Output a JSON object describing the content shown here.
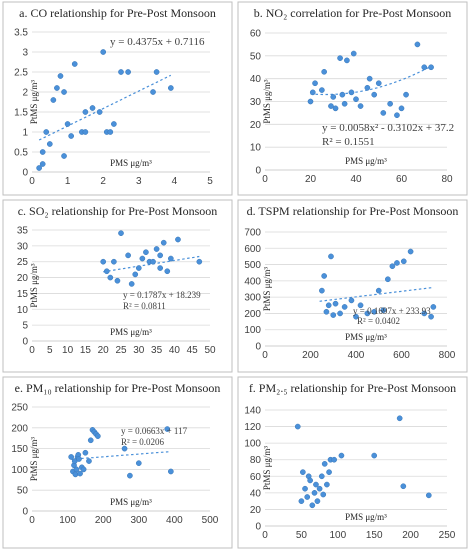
{
  "figure": {
    "accent": "#4a90d9",
    "grid": "#d9d9d9",
    "border": "#bfbfbf"
  },
  "chart_data": [
    {
      "type": "scatter",
      "title": "a.   CO relationship for Pre-Post Monsoon",
      "xlabel": "PMS μg/m³",
      "ylabel": "PtMS μg/m³",
      "xlim": [
        0,
        5
      ],
      "ylim": [
        0,
        3.5
      ],
      "xticks": [
        0,
        1,
        2,
        3,
        4,
        5
      ],
      "yticks": [
        0,
        0.5,
        1,
        1.5,
        2,
        2.5,
        3,
        3.5
      ],
      "grid": "horizontal",
      "x": [
        0.2,
        0.3,
        0.3,
        0.5,
        0.6,
        0.7,
        0.8,
        0.9,
        0.9,
        1.0,
        1.2,
        1.4,
        1.5,
        1.5,
        1.7,
        1.9,
        2.0,
        2.1,
        2.2,
        2.3,
        2.5,
        2.7,
        3.4,
        3.5,
        3.9,
        0.4,
        1.1
      ],
      "y": [
        0.1,
        0.2,
        0.5,
        0.7,
        1.8,
        2.1,
        2.4,
        0.4,
        2.0,
        1.2,
        2.7,
        1.0,
        1.5,
        1.0,
        1.6,
        1.5,
        3.0,
        1.0,
        1.0,
        1.2,
        2.5,
        2.5,
        2.0,
        2.5,
        2.1,
        1.0,
        0.9
      ],
      "trend": {
        "kind": "linear",
        "a": 0.4375,
        "b": 0.7116,
        "x0": 0.2,
        "x1": 3.9
      },
      "equations": [
        "y = 0.4375x + 0.7116"
      ]
    },
    {
      "type": "scatter",
      "title": "b. NO₂ correlation for Pre-Post Monsoon",
      "xlabel": "PMS μg/m³",
      "ylabel": "PtMS μg/m³",
      "xlim": [
        0,
        80
      ],
      "ylim": [
        0,
        60
      ],
      "xticks": [
        0,
        20,
        40,
        60,
        80
      ],
      "yticks": [
        0,
        10,
        20,
        30,
        40,
        50,
        60
      ],
      "grid": "horizontal",
      "x": [
        20,
        21,
        22,
        25,
        26,
        29,
        30,
        31,
        33,
        34,
        35,
        36,
        38,
        39,
        40,
        42,
        45,
        46,
        48,
        50,
        52,
        55,
        58,
        60,
        62,
        67,
        70,
        73
      ],
      "y": [
        30,
        34,
        38,
        35,
        43,
        28,
        32,
        27,
        49,
        33,
        29,
        48,
        34,
        51,
        31,
        28,
        36,
        40,
        33,
        38,
        25,
        29,
        24,
        27,
        33,
        55,
        45,
        45
      ],
      "trend": {
        "kind": "quadratic",
        "a": 0.0058,
        "b": -0.3102,
        "c": 37.2,
        "x0": 20,
        "x1": 73
      },
      "equations": [
        "y = 0.0058x² - 0.3102x + 37.2",
        "R² = 0.1551"
      ]
    },
    {
      "type": "scatter",
      "title": "c. SO₂ relationship for Pre-Post Monsoon",
      "xlabel": "PMS μg/m³",
      "ylabel": "PtMS μg/m³",
      "xlim": [
        0,
        50
      ],
      "ylim": [
        0,
        35
      ],
      "xticks": [
        0,
        5,
        10,
        15,
        20,
        25,
        30,
        35,
        40,
        45,
        50
      ],
      "yticks": [
        0,
        5,
        10,
        15,
        20,
        25,
        30,
        35
      ],
      "grid": "horizontal",
      "x": [
        20,
        21,
        22,
        23,
        24,
        25,
        27,
        28,
        29,
        31,
        32,
        33,
        34,
        35,
        36,
        37,
        38,
        39,
        41,
        47,
        30,
        36
      ],
      "y": [
        25,
        22,
        20,
        25,
        19,
        34,
        27,
        18,
        21,
        26,
        28,
        25,
        25,
        29,
        27,
        31,
        22,
        26,
        32,
        25,
        23,
        23
      ],
      "trend": {
        "kind": "linear",
        "a": 0.1787,
        "b": 18.239,
        "x0": 20,
        "x1": 47
      },
      "equations": [
        "y = 0.1787x + 18.239",
        "R² = 0.0811"
      ]
    },
    {
      "type": "scatter",
      "title": "d. TSPM relationship for Pre-Post Monsoon",
      "xlabel": "PMS μg/m³",
      "ylabel": "PtMS μg/m³",
      "xlim": [
        0,
        800
      ],
      "ylim": [
        0,
        700
      ],
      "xticks": [
        0,
        200,
        400,
        600,
        800
      ],
      "yticks": [
        0,
        100,
        200,
        300,
        400,
        500,
        600,
        700
      ],
      "grid": "horizontal",
      "x": [
        250,
        260,
        270,
        280,
        290,
        300,
        310,
        330,
        350,
        380,
        400,
        420,
        450,
        480,
        500,
        520,
        540,
        560,
        580,
        610,
        640,
        700,
        730,
        740
      ],
      "y": [
        340,
        430,
        210,
        250,
        550,
        190,
        260,
        200,
        240,
        280,
        180,
        250,
        200,
        210,
        340,
        220,
        410,
        490,
        510,
        520,
        580,
        200,
        180,
        240
      ],
      "trend": {
        "kind": "linear",
        "a": 0.1697,
        "b": 233.93,
        "x0": 240,
        "x1": 740
      },
      "equations": [
        "y = 0.1697x + 233.93",
        "R² = 0.0402"
      ]
    },
    {
      "type": "scatter",
      "title": "e. PM₁₀ relationship for Pre-Post Monsoon",
      "xlabel": "PMS μg/m³",
      "ylabel": "PtMS μg/m³",
      "xlim": [
        0,
        500
      ],
      "ylim": [
        0,
        250
      ],
      "xticks": [
        0,
        100,
        200,
        300,
        400,
        500
      ],
      "yticks": [
        0,
        50,
        100,
        150,
        200,
        250
      ],
      "grid": "horizontal",
      "x": [
        110,
        115,
        118,
        120,
        122,
        125,
        128,
        130,
        132,
        135,
        140,
        145,
        150,
        160,
        165,
        170,
        175,
        180,
        185,
        260,
        275,
        300,
        390,
        380
      ],
      "y": [
        130,
        95,
        110,
        120,
        88,
        100,
        130,
        135,
        125,
        90,
        105,
        100,
        140,
        120,
        170,
        195,
        190,
        185,
        180,
        150,
        85,
        115,
        95,
        197
      ],
      "trend": {
        "kind": "linear",
        "a": 0.0663,
        "b": 117,
        "x0": 110,
        "x1": 390
      },
      "equations": [
        "y = 0.0663x + 117",
        "R² = 0.0206"
      ]
    },
    {
      "type": "scatter",
      "title": "f. PM₂.₅ relationship for Pre-Post Monsoon",
      "xlabel": "PMS μg/m³",
      "ylabel": "PtMS μg/m³",
      "xlim": [
        0,
        250
      ],
      "ylim": [
        0,
        140
      ],
      "xticks": [
        0,
        50,
        100,
        150,
        200,
        250
      ],
      "yticks": [
        0,
        20,
        40,
        60,
        80,
        100,
        120,
        140
      ],
      "grid": "horizontal",
      "x": [
        45,
        50,
        52,
        55,
        58,
        60,
        62,
        65,
        68,
        70,
        72,
        75,
        78,
        80,
        82,
        85,
        88,
        90,
        95,
        105,
        150,
        185,
        190,
        225
      ],
      "y": [
        120,
        30,
        65,
        45,
        35,
        60,
        55,
        25,
        40,
        50,
        30,
        45,
        60,
        38,
        75,
        50,
        65,
        80,
        80,
        85,
        85,
        130,
        48,
        37
      ],
      "trend": {
        "kind": "linear",
        "a": 0.0,
        "b": 60,
        "x0": 45,
        "x1": 225
      },
      "equations": []
    }
  ]
}
